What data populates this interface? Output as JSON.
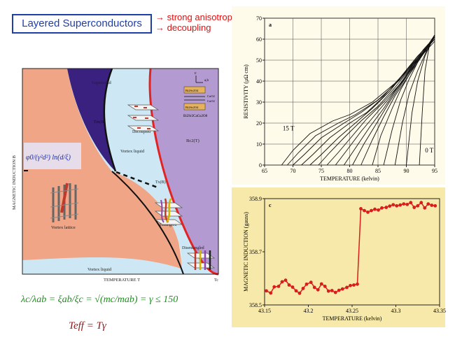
{
  "slide": {
    "title": "Layered Superconductors",
    "bullets": [
      "→ strong anisotropy",
      "→ decoupling"
    ],
    "formula_anisotropy": "λc/λab = ξab/ξc = √(mc/mab) = γ ≤ 150",
    "formula_teff": "Teff = Tγ"
  },
  "phase_diagram": {
    "ylabel": "MAGNETIC INDUCTION B",
    "xlabel": "TEMPERATURE T",
    "tc_label": "Tc",
    "region_labels": {
      "supersolid": "Supersolid",
      "decoupled": "Decoupled",
      "vortex_liquid_upper": "Vortex liquid",
      "vortex_lattice": "Vortex lattice",
      "entangled": "Entangled",
      "disentangled": "Disentangled",
      "vortex_liquid_lower": "Vortex liquid"
    },
    "line_labels": {
      "tm": "Tm(B)",
      "tx": "Tx(B)",
      "bc2": "Bc2(T)"
    },
    "formula": "φ0/(γ²d²) ln(d/ξ)",
    "inset": {
      "axes": [
        "c",
        "a,b"
      ],
      "layers": [
        "Bi2Sr2O4",
        "CuO2",
        "CuO2",
        "Bi2Sr2O4"
      ],
      "compound": "Bi2Sr2CaCu2O8"
    },
    "colors": {
      "lattice": "#f0a586",
      "supersolid": "#3a2180",
      "liquid": "#cde8f4",
      "normal": "#b39ad0",
      "bc2_line": "#e32222"
    }
  },
  "chart_data": [
    {
      "type": "line",
      "panel_label": "a",
      "xlabel": "TEMPERATURE (kelvin)",
      "ylabel": "RESISTIVITY (μΩ cm)",
      "xlim": [
        65,
        95
      ],
      "ylim": [
        0,
        70
      ],
      "xticks": [
        65,
        70,
        75,
        80,
        85,
        90,
        95
      ],
      "yticks": [
        0,
        10,
        20,
        30,
        40,
        50,
        60,
        70
      ],
      "annotations": [
        "15 T",
        "0 T"
      ],
      "grid": true,
      "series": [
        {
          "name": "15 T",
          "values": [
            [
              68,
              0
            ],
            [
              70,
              7
            ],
            [
              73,
              15
            ],
            [
              77,
              21
            ],
            [
              80,
              24
            ],
            [
              84,
              30
            ],
            [
              88,
              39
            ],
            [
              92,
              50
            ],
            [
              95,
              59
            ]
          ]
        },
        {
          "values": [
            [
              69,
              0
            ],
            [
              71,
              6
            ],
            [
              74,
              14
            ],
            [
              78,
              20
            ],
            [
              81,
              24
            ],
            [
              85,
              31
            ],
            [
              89,
              41
            ],
            [
              92,
              51
            ],
            [
              95,
              60
            ]
          ]
        },
        {
          "values": [
            [
              70,
              0
            ],
            [
              72,
              5
            ],
            [
              75,
              13
            ],
            [
              79,
              20
            ],
            [
              82,
              25
            ],
            [
              86,
              33
            ],
            [
              89,
              42
            ],
            [
              92,
              52
            ],
            [
              95,
              60
            ]
          ]
        },
        {
          "values": [
            [
              71.5,
              0
            ],
            [
              73.5,
              5
            ],
            [
              76.5,
              13
            ],
            [
              80,
              20
            ],
            [
              83,
              25
            ],
            [
              87,
              35
            ],
            [
              90,
              45
            ],
            [
              93,
              54
            ],
            [
              95,
              60
            ]
          ]
        },
        {
          "values": [
            [
              73,
              0
            ],
            [
              75,
              5
            ],
            [
              78,
              13
            ],
            [
              81,
              20
            ],
            [
              84,
              27
            ],
            [
              87,
              35
            ],
            [
              90,
              45
            ],
            [
              93,
              55
            ],
            [
              95,
              61
            ]
          ]
        },
        {
          "values": [
            [
              74.5,
              0
            ],
            [
              76.5,
              6
            ],
            [
              79,
              13
            ],
            [
              82,
              21
            ],
            [
              85,
              28
            ],
            [
              88,
              37
            ],
            [
              91,
              47
            ],
            [
              93,
              55
            ],
            [
              95,
              61
            ]
          ]
        },
        {
          "values": [
            [
              76,
              0
            ],
            [
              78,
              6
            ],
            [
              80.5,
              14
            ],
            [
              83,
              22
            ],
            [
              86,
              30
            ],
            [
              89,
              39
            ],
            [
              91,
              47
            ],
            [
              93.5,
              56
            ],
            [
              95,
              61
            ]
          ]
        },
        {
          "values": [
            [
              77.5,
              0
            ],
            [
              79.5,
              7
            ],
            [
              82,
              16
            ],
            [
              84.5,
              24
            ],
            [
              87,
              32
            ],
            [
              89.5,
              41
            ],
            [
              92,
              50
            ],
            [
              94,
              57
            ],
            [
              95,
              61
            ]
          ]
        },
        {
          "values": [
            [
              79,
              0
            ],
            [
              81,
              8
            ],
            [
              83.5,
              18
            ],
            [
              86,
              27
            ],
            [
              88,
              35
            ],
            [
              90.5,
              44
            ],
            [
              92.5,
              52
            ],
            [
              94,
              57
            ],
            [
              95,
              62
            ]
          ]
        },
        {
          "values": [
            [
              80.5,
              0
            ],
            [
              82.5,
              10
            ],
            [
              85,
              21
            ],
            [
              87,
              30
            ],
            [
              89,
              38
            ],
            [
              91,
              46
            ],
            [
              93,
              53
            ],
            [
              94.5,
              59
            ],
            [
              95,
              62
            ]
          ]
        },
        {
          "values": [
            [
              82,
              0
            ],
            [
              84,
              12
            ],
            [
              86,
              23
            ],
            [
              88,
              33
            ],
            [
              90,
              41
            ],
            [
              92,
              49
            ],
            [
              93.5,
              55
            ],
            [
              95,
              62
            ]
          ]
        },
        {
          "values": [
            [
              84,
              0
            ],
            [
              85.5,
              14
            ],
            [
              87.5,
              27
            ],
            [
              89,
              36
            ],
            [
              90.5,
              43
            ],
            [
              92,
              50
            ],
            [
              94,
              57
            ],
            [
              95,
              62
            ]
          ]
        },
        {
          "values": [
            [
              86,
              0
            ],
            [
              87.5,
              17
            ],
            [
              89,
              31
            ],
            [
              90.5,
              41
            ],
            [
              92,
              49
            ],
            [
              93.5,
              56
            ],
            [
              95,
              62
            ]
          ]
        },
        {
          "values": [
            [
              88,
              0
            ],
            [
              89.3,
              20
            ],
            [
              90.5,
              34
            ],
            [
              92,
              45
            ],
            [
              93.5,
              54
            ],
            [
              95,
              62
            ]
          ]
        },
        {
          "values": [
            [
              90,
              0
            ],
            [
              91,
              25
            ],
            [
              92,
              40
            ],
            [
              93.3,
              52
            ],
            [
              94.3,
              58
            ],
            [
              95,
              62
            ]
          ]
        },
        {
          "name": "0 T",
          "values": [
            [
              92.3,
              0
            ],
            [
              92.8,
              25
            ],
            [
              93.3,
              45
            ],
            [
              94,
              56
            ],
            [
              95,
              62
            ]
          ]
        }
      ]
    },
    {
      "type": "line",
      "panel_label": "c",
      "xlabel": "TEMPERATURE (kelvin)",
      "ylabel": "MAGNETIC INDUCTION (gauss)",
      "xlim": [
        43.15,
        43.35
      ],
      "ylim": [
        358.5,
        358.9
      ],
      "xticks": [
        43.15,
        43.2,
        43.25,
        43.3,
        43.35
      ],
      "yticks": [
        358.5,
        358.7,
        358.9
      ],
      "grid": false,
      "color": "#d81d1d",
      "series": [
        {
          "values": [
            [
              43.152,
              358.553
            ],
            [
              43.157,
              358.545
            ],
            [
              43.161,
              358.568
            ],
            [
              43.166,
              358.57
            ],
            [
              43.17,
              358.587
            ],
            [
              43.174,
              358.593
            ],
            [
              43.178,
              358.575
            ],
            [
              43.182,
              358.567
            ],
            [
              43.186,
              358.553
            ],
            [
              43.19,
              358.544
            ],
            [
              43.194,
              358.562
            ],
            [
              43.198,
              358.578
            ],
            [
              43.203,
              358.585
            ],
            [
              43.207,
              358.566
            ],
            [
              43.211,
              358.557
            ],
            [
              43.215,
              358.579
            ],
            [
              43.219,
              358.57
            ],
            [
              43.223,
              358.552
            ],
            [
              43.227,
              358.554
            ],
            [
              43.231,
              358.547
            ],
            [
              43.235,
              358.555
            ],
            [
              43.239,
              358.56
            ],
            [
              43.244,
              358.566
            ],
            [
              43.248,
              358.573
            ],
            [
              43.252,
              358.575
            ],
            [
              43.256,
              358.578
            ],
            [
              43.26,
              358.862
            ],
            [
              43.264,
              358.855
            ],
            [
              43.268,
              358.849
            ],
            [
              43.272,
              358.855
            ],
            [
              43.276,
              358.86
            ],
            [
              43.28,
              358.857
            ],
            [
              43.284,
              358.865
            ],
            [
              43.289,
              358.867
            ],
            [
              43.293,
              358.872
            ],
            [
              43.297,
              358.877
            ],
            [
              43.301,
              358.873
            ],
            [
              43.305,
              358.876
            ],
            [
              43.309,
              358.88
            ],
            [
              43.313,
              358.878
            ],
            [
              43.317,
              358.885
            ],
            [
              43.321,
              358.867
            ],
            [
              43.325,
              358.873
            ],
            [
              43.329,
              358.885
            ],
            [
              43.333,
              358.865
            ],
            [
              43.337,
              358.88
            ],
            [
              43.341,
              358.875
            ],
            [
              43.345,
              358.873
            ]
          ]
        }
      ]
    }
  ]
}
